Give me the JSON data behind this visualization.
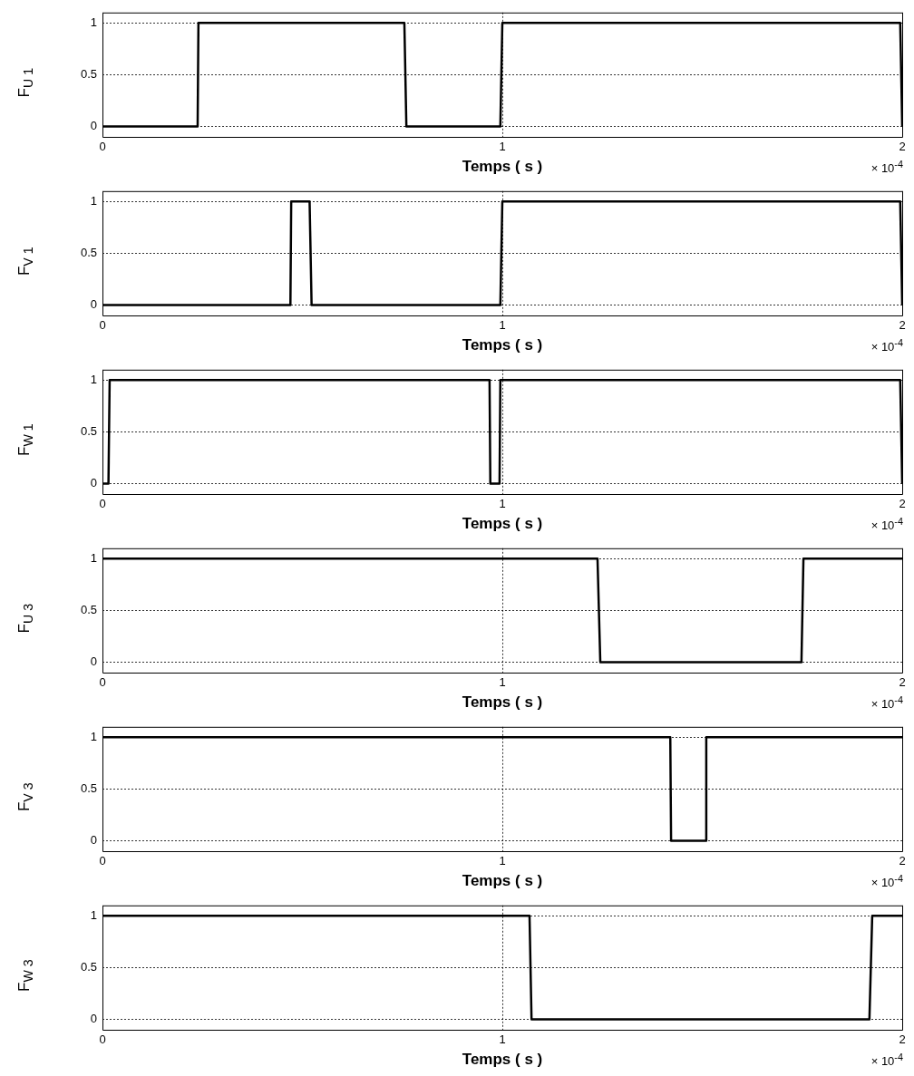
{
  "chart_data": [
    {
      "type": "line",
      "ylabel": "F$_{U 1}$",
      "xlabel": "Temps ( s )",
      "annotations": [
        "× 10$^{-4}$"
      ],
      "xlim": [
        0,
        2
      ],
      "xticks": [
        0,
        1,
        2
      ],
      "ylim": [
        -0.1,
        1.1
      ],
      "yticks": [
        0,
        0.5,
        1
      ],
      "grid": true,
      "marker": "none",
      "line_style": "solid",
      "legend": false,
      "series": [
        {
          "color": "#000000",
          "x": [
            0,
            0.238,
            0.24,
            0.755,
            0.76,
            0.995,
            1.0,
            1.995,
            2.0
          ],
          "values": [
            0,
            0,
            1,
            1,
            0,
            0,
            1,
            1,
            0
          ]
        }
      ]
    },
    {
      "type": "line",
      "ylabel": "F$_{V 1}$",
      "xlabel": "Temps ( s )",
      "annotations": [
        "× 10$^{-4}$"
      ],
      "xlim": [
        0,
        2
      ],
      "xticks": [
        0,
        1,
        2
      ],
      "ylim": [
        -0.1,
        1.1
      ],
      "yticks": [
        0,
        0.5,
        1
      ],
      "grid": true,
      "marker": "none",
      "line_style": "solid",
      "legend": false,
      "series": [
        {
          "color": "#000000",
          "x": [
            0,
            0.47,
            0.472,
            0.518,
            0.523,
            0.995,
            1.0,
            1.995,
            2.0
          ],
          "values": [
            0,
            0,
            1,
            1,
            0,
            0,
            1,
            1,
            0
          ]
        }
      ]
    },
    {
      "type": "line",
      "ylabel": "F$_{W 1}$",
      "xlabel": "Temps ( s )",
      "annotations": [
        "× 10$^{-4}$"
      ],
      "xlim": [
        0,
        2
      ],
      "xticks": [
        0,
        1,
        2
      ],
      "ylim": [
        -0.1,
        1.1
      ],
      "yticks": [
        0,
        0.5,
        1
      ],
      "grid": true,
      "marker": "none",
      "line_style": "solid",
      "legend": false,
      "series": [
        {
          "color": "#000000",
          "x": [
            0,
            0.015,
            0.018,
            0.968,
            0.97,
            0.993,
            0.995,
            1.995,
            2.0
          ],
          "values": [
            0,
            0,
            1,
            1,
            0,
            0,
            1,
            1,
            0
          ]
        }
      ]
    },
    {
      "type": "line",
      "ylabel": "F$_{U 3}$",
      "xlabel": "Temps ( s )",
      "annotations": [
        "× 10$^{-4}$"
      ],
      "xlim": [
        0,
        2
      ],
      "xticks": [
        0,
        1,
        2
      ],
      "ylim": [
        -0.1,
        1.1
      ],
      "yticks": [
        0,
        0.5,
        1
      ],
      "grid": true,
      "marker": "none",
      "line_style": "solid",
      "legend": false,
      "series": [
        {
          "color": "#000000",
          "x": [
            0,
            1.238,
            1.245,
            1.748,
            1.753,
            2.0
          ],
          "values": [
            1,
            1,
            0,
            0,
            1,
            1
          ]
        }
      ]
    },
    {
      "type": "line",
      "ylabel": "F$_{V 3}$",
      "xlabel": "Temps ( s )",
      "annotations": [
        "× 10$^{-4}$"
      ],
      "xlim": [
        0,
        2
      ],
      "xticks": [
        0,
        1,
        2
      ],
      "ylim": [
        -0.1,
        1.1
      ],
      "yticks": [
        0,
        0.5,
        1
      ],
      "grid": true,
      "marker": "none",
      "line_style": "solid",
      "legend": false,
      "series": [
        {
          "color": "#000000",
          "x": [
            0,
            1.42,
            1.422,
            1.508,
            1.51,
            2.0
          ],
          "values": [
            1,
            1,
            0,
            0,
            1,
            1
          ]
        }
      ]
    },
    {
      "type": "line",
      "ylabel": "F$_{W 3}$",
      "xlabel": "Temps ( s )",
      "annotations": [
        "× 10$^{-4}$"
      ],
      "xlim": [
        0,
        2
      ],
      "xticks": [
        0,
        1,
        2
      ],
      "ylim": [
        -0.1,
        1.1
      ],
      "yticks": [
        0,
        0.5,
        1
      ],
      "grid": true,
      "marker": "none",
      "line_style": "solid",
      "legend": false,
      "series": [
        {
          "color": "#000000",
          "x": [
            0,
            1.068,
            1.073,
            1.918,
            1.925,
            2.0
          ],
          "values": [
            1,
            1,
            0,
            0,
            1,
            1
          ]
        }
      ]
    }
  ]
}
